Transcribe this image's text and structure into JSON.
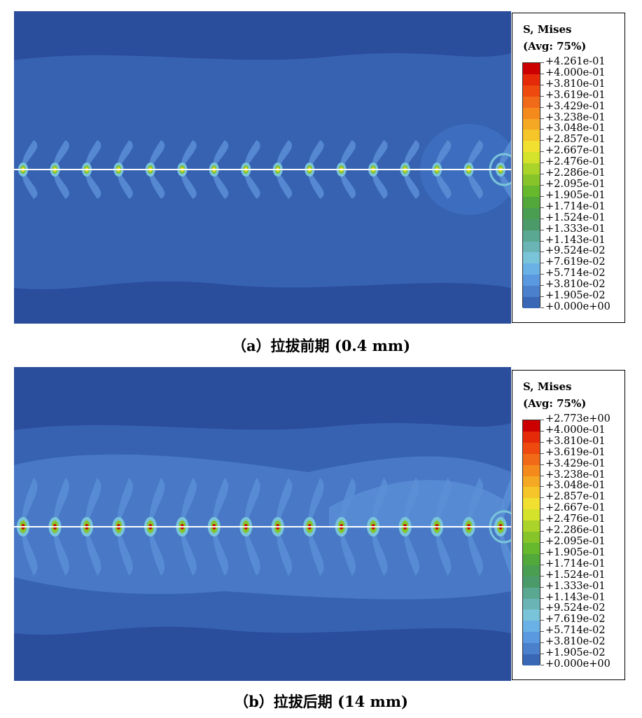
{
  "panels": [
    {
      "id": "a",
      "caption": "（a）拉拔前期 (0.4 mm)",
      "legend": {
        "title_line1": "S, Mises",
        "title_line2": "(Avg: 75%)",
        "labels": [
          "+4.261e-01",
          "+4.000e-01",
          "+3.810e-01",
          "+3.619e-01",
          "+3.429e-01",
          "+3.238e-01",
          "+3.048e-01",
          "+2.857e-01",
          "+2.667e-01",
          "+2.476e-01",
          "+2.286e-01",
          "+2.095e-01",
          "+1.905e-01",
          "+1.714e-01",
          "+1.524e-01",
          "+1.333e-01",
          "+1.143e-01",
          "+9.524e-02",
          "+7.619e-02",
          "+5.714e-02",
          "+3.810e-02",
          "+1.905e-02",
          "+0.000e+00"
        ]
      }
    },
    {
      "id": "b",
      "caption": "（b）拉拔后期 (14 mm)",
      "legend": {
        "title_line1": "S, Mises",
        "title_line2": "(Avg: 75%)",
        "labels": [
          "+2.773e+00",
          "+4.000e-01",
          "+3.810e-01",
          "+3.619e-01",
          "+3.429e-01",
          "+3.238e-01",
          "+3.048e-01",
          "+2.857e-01",
          "+2.667e-01",
          "+2.476e-01",
          "+2.286e-01",
          "+2.095e-01",
          "+1.905e-01",
          "+1.714e-01",
          "+1.524e-01",
          "+1.333e-01",
          "+1.143e-01",
          "+9.524e-02",
          "+7.619e-02",
          "+5.714e-02",
          "+3.810e-02",
          "+1.905e-02",
          "+0.000e+00"
        ]
      }
    }
  ],
  "colors": {
    "scale_top_to_bottom": [
      "#cc0000",
      "#e52a0a",
      "#ee4a10",
      "#f06a18",
      "#f58a1c",
      "#f5a823",
      "#f5c52a",
      "#f2e030",
      "#d4e22c",
      "#aad42a",
      "#86c42a",
      "#66b82c",
      "#52a83a",
      "#4a9e52",
      "#4a9a6a",
      "#5aa892",
      "#6ab4b6",
      "#7ac4da",
      "#6ab2e6",
      "#5a98e0",
      "#4a80cc",
      "#3a66b6",
      "#2a4d9c"
    ],
    "background_field": "#2a4d9c",
    "mid_field": "#3c69ba",
    "light_field": "#5a8fd6"
  },
  "node_count": 16
}
